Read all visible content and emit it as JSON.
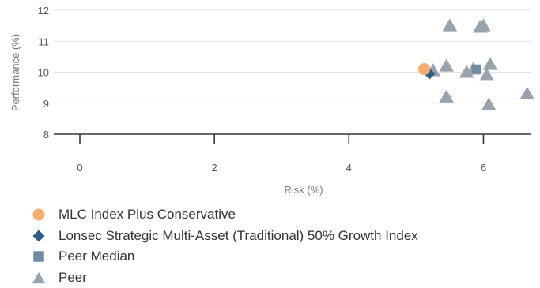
{
  "chart_data": {
    "type": "scatter",
    "xlabel": "Risk (%)",
    "ylabel": "Performance (%)",
    "xlim": [
      0,
      6.7
    ],
    "ylim": [
      8,
      12
    ],
    "xticks": [
      "0",
      "2",
      "4",
      "6"
    ],
    "yticks": [
      "8",
      "9",
      "10",
      "11",
      "12"
    ],
    "grid": "horizontal",
    "legend_position": "bottom-left",
    "series": [
      {
        "name": "Peer",
        "marker": "triangle",
        "color": "#98a3ad",
        "points": [
          {
            "x": 5.45,
            "y": 10.2
          },
          {
            "x": 5.5,
            "y": 11.5
          },
          {
            "x": 5.45,
            "y": 9.2
          },
          {
            "x": 5.75,
            "y": 10.0
          },
          {
            "x": 5.85,
            "y": 10.1
          },
          {
            "x": 5.95,
            "y": 11.45
          },
          {
            "x": 6.0,
            "y": 11.5
          },
          {
            "x": 6.05,
            "y": 9.9
          },
          {
            "x": 6.1,
            "y": 10.25
          },
          {
            "x": 6.08,
            "y": 8.95
          },
          {
            "x": 6.65,
            "y": 9.3
          },
          {
            "x": 5.25,
            "y": 10.05
          }
        ]
      },
      {
        "name": "Peer Median",
        "marker": "square",
        "color": "#6e8ba2",
        "points": [
          {
            "x": 5.9,
            "y": 10.1
          }
        ]
      },
      {
        "name": "Lonsec Strategic Multi-Asset (Traditional) 50% Growth Index",
        "marker": "diamond",
        "color": "#2f5d86",
        "points": [
          {
            "x": 5.2,
            "y": 9.95
          }
        ]
      },
      {
        "name": "MLC Index Plus Conservative",
        "marker": "circle",
        "color": "#f9ac6c",
        "points": [
          {
            "x": 5.12,
            "y": 10.1
          }
        ]
      }
    ],
    "legend": [
      {
        "label": "MLC Index Plus Conservative",
        "marker": "circle",
        "color": "#f9ac6c"
      },
      {
        "label": "Lonsec Strategic Multi-Asset (Traditional) 50% Growth Index",
        "marker": "diamond",
        "color": "#2f5d86"
      },
      {
        "label": "Peer Median",
        "marker": "square",
        "color": "#6e8ba2"
      },
      {
        "label": "Peer",
        "marker": "triangle",
        "color": "#98a3ad"
      }
    ]
  }
}
